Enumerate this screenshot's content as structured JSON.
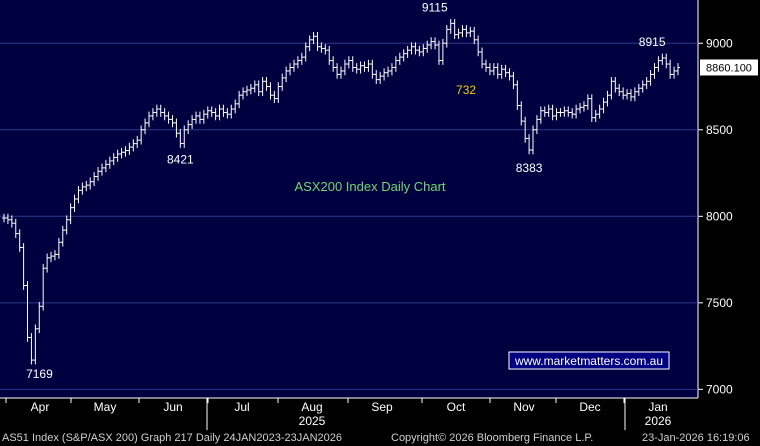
{
  "chart_data": {
    "type": "line",
    "style": "bar-ohlc",
    "title": "ASX200 Index Daily Chart",
    "ylim": [
      6950,
      9250
    ],
    "yticks": [
      7000,
      7500,
      8000,
      8500,
      9000
    ],
    "ytick_labels": [
      "7000",
      "7500",
      "8000",
      "8500",
      "9000"
    ],
    "last_value_label": "8860.100",
    "last_value": 8860.1,
    "months": [
      "Apr",
      "May",
      "Jun",
      "Jul",
      "Aug",
      "Sep",
      "Oct",
      "Nov",
      "Dec",
      "Jan"
    ],
    "year_labels": [
      "2025",
      "2026"
    ],
    "annotations": [
      {
        "text": "7169",
        "value": 7169,
        "color": "#ffffff"
      },
      {
        "text": "8421",
        "value": 8421,
        "color": "#ffffff"
      },
      {
        "text": "9115",
        "value": 9115,
        "color": "#ffffff"
      },
      {
        "text": "732",
        "value": 732,
        "color": "#f2d200"
      },
      {
        "text": "8383",
        "value": 8383,
        "color": "#ffffff"
      },
      {
        "text": "8915",
        "value": 8915,
        "color": "#ffffff"
      }
    ],
    "watermark": "www.marketmatters.com.au",
    "series": [
      {
        "values": [
          7990,
          7980,
          7960,
          7900,
          7820,
          7600,
          7300,
          7169,
          7350,
          7480,
          7700,
          7760,
          7770,
          7780,
          7850,
          7920,
          7980,
          8050,
          8100,
          8150,
          8170,
          8180,
          8200,
          8230,
          8260,
          8280,
          8300,
          8320,
          8340,
          8360,
          8370,
          8380,
          8400,
          8420,
          8440,
          8500,
          8540,
          8580,
          8600,
          8620,
          8600,
          8580,
          8560,
          8540,
          8480,
          8421,
          8500,
          8530,
          8560,
          8580,
          8560,
          8590,
          8610,
          8600,
          8580,
          8620,
          8600,
          8590,
          8620,
          8650,
          8700,
          8720,
          8730,
          8740,
          8760,
          8720,
          8780,
          8750,
          8700,
          8680,
          8750,
          8800,
          8840,
          8860,
          8880,
          8900,
          8920,
          8980,
          9020,
          9040,
          8980,
          8970,
          8960,
          8900,
          8860,
          8820,
          8840,
          8880,
          8900,
          8860,
          8850,
          8870,
          8860,
          8880,
          8820,
          8790,
          8810,
          8830,
          8840,
          8860,
          8900,
          8920,
          8940,
          8960,
          8980,
          8960,
          8950,
          8970,
          8990,
          9010,
          8990,
          8900,
          9000,
          9080,
          9115,
          9050,
          9060,
          9080,
          9060,
          9070,
          9020,
          8950,
          8880,
          8860,
          8840,
          8860,
          8820,
          8850,
          8830,
          8810,
          8760,
          8640,
          8550,
          8450,
          8383,
          8500,
          8560,
          8610,
          8600,
          8620,
          8580,
          8600,
          8600,
          8610,
          8600,
          8590,
          8620,
          8630,
          8640,
          8680,
          8570,
          8590,
          8620,
          8660,
          8700,
          8780,
          8740,
          8720,
          8700,
          8710,
          8690,
          8720,
          8740,
          8760,
          8780,
          8820,
          8860,
          8900,
          8915,
          8880,
          8820,
          8840,
          8860
        ]
      }
    ],
    "colors": {
      "background": "#000040",
      "line": "#ffffff",
      "grid": "#2a3a8a",
      "axis_panel": "#000000"
    }
  },
  "watermark_text": "www.marketmatters.com.au",
  "footer": {
    "left": "AS51 Index (S&P/ASX 200) Graph 217 Daily 24JAN2023-23JAN2026",
    "center": "Copyright© 2026 Bloomberg Finance L.P.",
    "right": "23-Jan-2026 16:19:06"
  }
}
